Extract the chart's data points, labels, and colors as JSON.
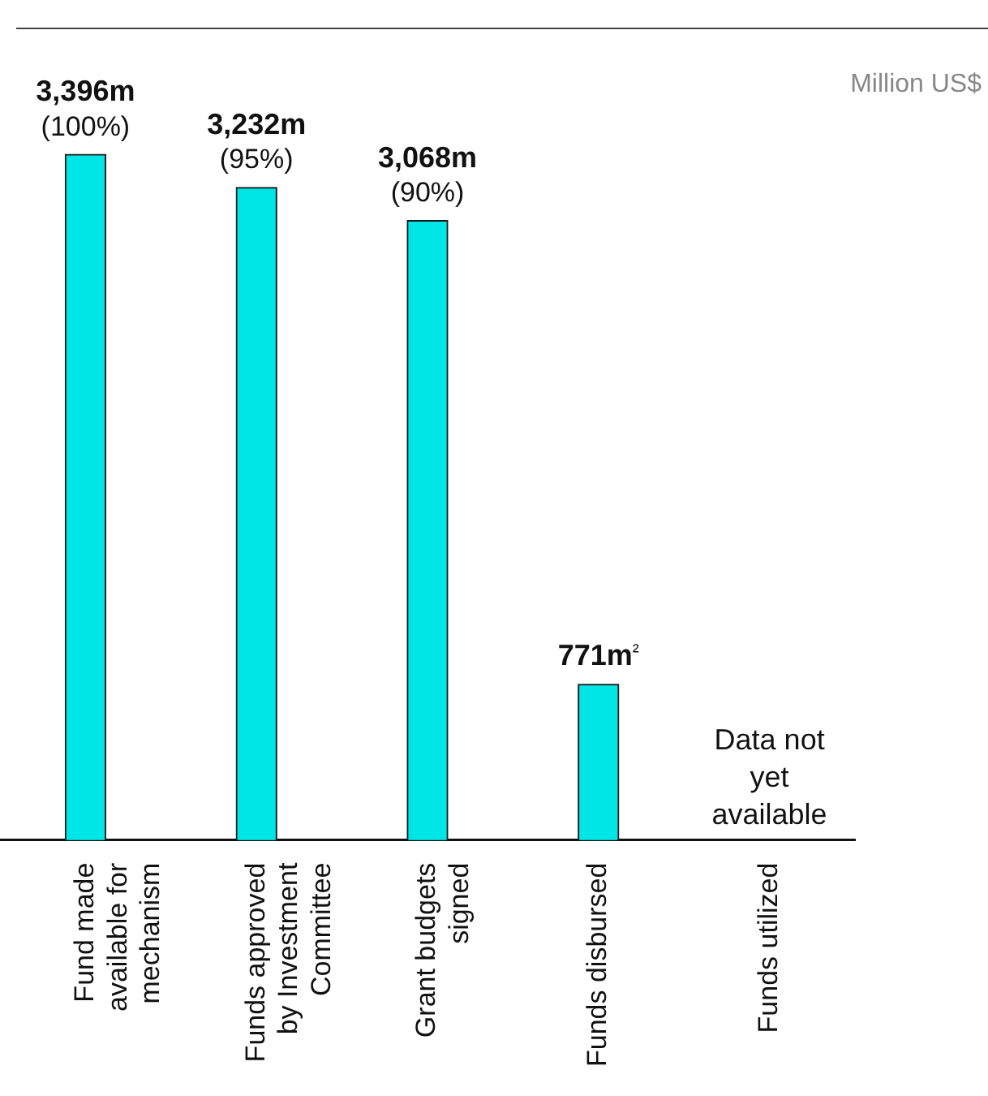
{
  "chart_data": {
    "type": "bar",
    "categories": [
      "Fund made available for mechanism",
      "Funds approved by Investment Committee",
      "Grant budgets signed",
      "Funds disbursed",
      "Funds utilized"
    ],
    "values": [
      3396,
      3232,
      3068,
      771,
      null
    ],
    "color": "#00e5e5",
    "value_labels": [
      "3,396m",
      "3,232m",
      "3,068m",
      "771m²",
      null
    ],
    "ylim": [
      0,
      4000
    ],
    "grid": false,
    "legend": false,
    "annotations": [
      "Million US$",
      "(100%)",
      "(95%)",
      "(90%)",
      "Data not yet available"
    ]
  }
}
